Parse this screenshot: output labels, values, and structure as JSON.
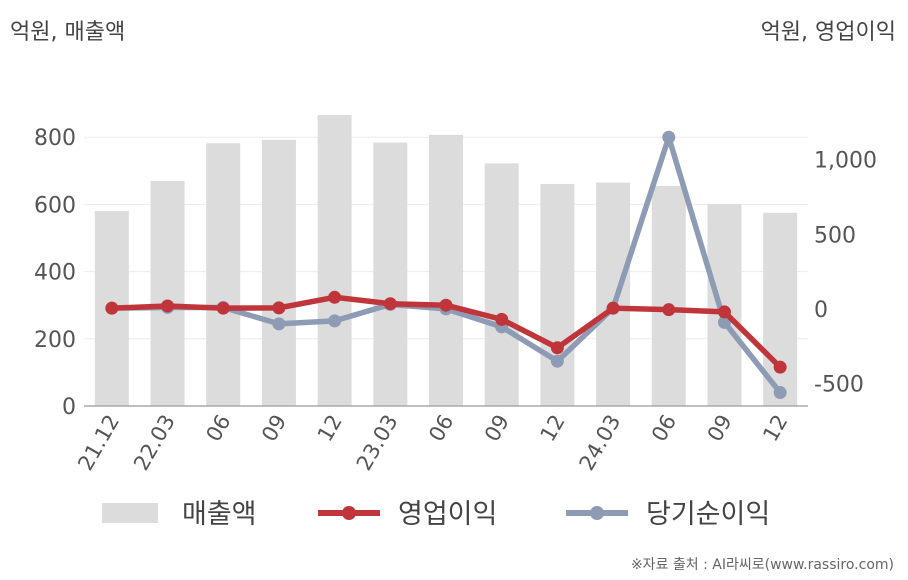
{
  "chart_data": {
    "type": "bar",
    "left_axis_unit": "억원, 매출액",
    "right_axis_unit": "억원, 영업이익",
    "categories": [
      "21.12",
      "22.03",
      "06",
      "09",
      "12",
      "23.03",
      "06",
      "09",
      "12",
      "24.03",
      "06",
      "09",
      "12"
    ],
    "left_axis": {
      "ticks": [
        "0",
        "200",
        "400",
        "600",
        "800"
      ],
      "min": 0,
      "max": 1000
    },
    "right_axis": {
      "ticks": [
        "-500",
        "0",
        "500",
        "1,000"
      ],
      "min": -650,
      "max": 1600
    },
    "series": [
      {
        "name": "매출액",
        "type": "bar",
        "axis": "left",
        "color": "#dcdcdc",
        "values": [
          580,
          670,
          782,
          792,
          866,
          784,
          807,
          722,
          661,
          665,
          655,
          601,
          575
        ]
      },
      {
        "name": "영업이익",
        "type": "line",
        "axis": "right",
        "color": "#c0353a",
        "values": [
          5,
          20,
          5,
          7,
          78,
          35,
          25,
          -70,
          -260,
          5,
          -5,
          -20,
          -390
        ]
      },
      {
        "name": "당기순이익",
        "type": "line",
        "axis": "right",
        "color": "#8e9bb5",
        "values": [
          5,
          10,
          10,
          -100,
          -80,
          30,
          0,
          -120,
          -350,
          5,
          1150,
          -90,
          -560
        ]
      }
    ],
    "grid": true,
    "legend_position": "bottom"
  },
  "source": "※자료 출처 : AI라씨로(www.rassiro.com)"
}
